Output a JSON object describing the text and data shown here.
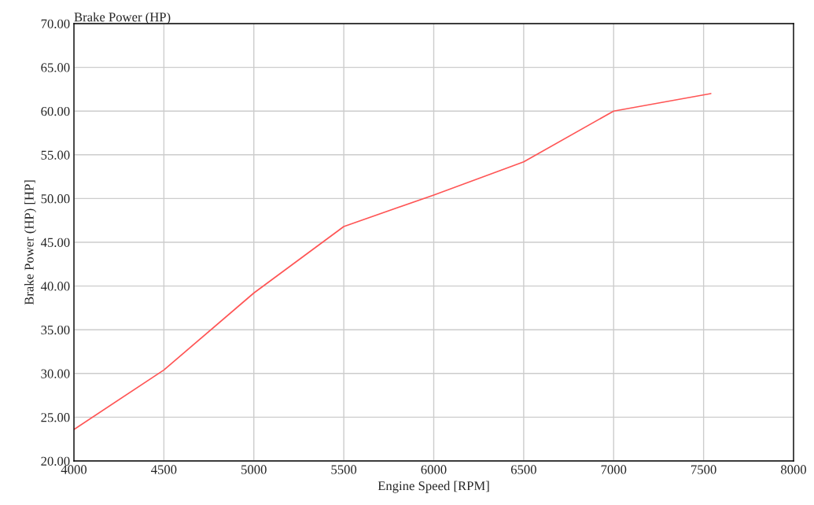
{
  "chart_data": {
    "type": "line",
    "title": "Brake Power (HP)",
    "xlabel": "Engine Speed [RPM]",
    "ylabel": "Brake Power (HP) [HP]",
    "x": [
      4000,
      4500,
      5000,
      5500,
      6000,
      6500,
      7000,
      7540
    ],
    "series": [
      {
        "color": "#ff5555",
        "values": [
          23.6,
          30.4,
          39.2,
          46.8,
          50.4,
          54.2,
          60.0,
          62.0
        ]
      }
    ],
    "xlim": [
      4000,
      8000
    ],
    "xticks": [
      4000,
      4500,
      5000,
      5500,
      6000,
      6500,
      7000,
      7500,
      8000
    ],
    "ylim": [
      20,
      70
    ],
    "yticks": [
      {
        "value": 20,
        "label": "20.00"
      },
      {
        "value": 25,
        "label": "25.00"
      },
      {
        "value": 30,
        "label": "30.00"
      },
      {
        "value": 35,
        "label": "35.00"
      },
      {
        "value": 40,
        "label": "40.00"
      },
      {
        "value": 45,
        "label": "45.00"
      },
      {
        "value": 50,
        "label": "50.00"
      },
      {
        "value": 55,
        "label": "55.00"
      },
      {
        "value": 60,
        "label": "60.00"
      },
      {
        "value": 65,
        "label": "65.00"
      },
      {
        "value": 70,
        "label": "70.00"
      }
    ],
    "grid": true,
    "marker": "none",
    "line_style": "solid"
  }
}
